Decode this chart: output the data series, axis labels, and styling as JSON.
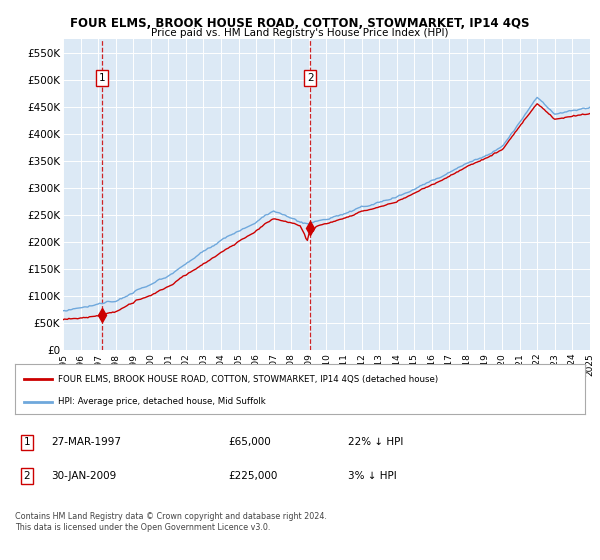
{
  "title": "FOUR ELMS, BROOK HOUSE ROAD, COTTON, STOWMARKET, IP14 4QS",
  "subtitle": "Price paid vs. HM Land Registry's House Price Index (HPI)",
  "background_color": "#dce9f5",
  "plot_bg_color": "#dce9f5",
  "ylim": [
    0,
    575000
  ],
  "yticks": [
    0,
    50000,
    100000,
    150000,
    200000,
    250000,
    300000,
    350000,
    400000,
    450000,
    500000,
    550000
  ],
  "x_start_year": 1995,
  "x_end_year": 2025,
  "hpi_color": "#6fa8dc",
  "price_color": "#cc0000",
  "sale1_year": 1997.23,
  "sale1_price": 65000,
  "sale2_year": 2009.08,
  "sale2_price": 225000,
  "legend_label_red": "FOUR ELMS, BROOK HOUSE ROAD, COTTON, STOWMARKET, IP14 4QS (detached house)",
  "legend_label_blue": "HPI: Average price, detached house, Mid Suffolk",
  "note1_date": "27-MAR-1997",
  "note1_price": "£65,000",
  "note1_hpi": "22% ↓ HPI",
  "note2_date": "30-JAN-2009",
  "note2_price": "£225,000",
  "note2_hpi": "3% ↓ HPI",
  "footer": "Contains HM Land Registry data © Crown copyright and database right 2024.\nThis data is licensed under the Open Government Licence v3.0."
}
